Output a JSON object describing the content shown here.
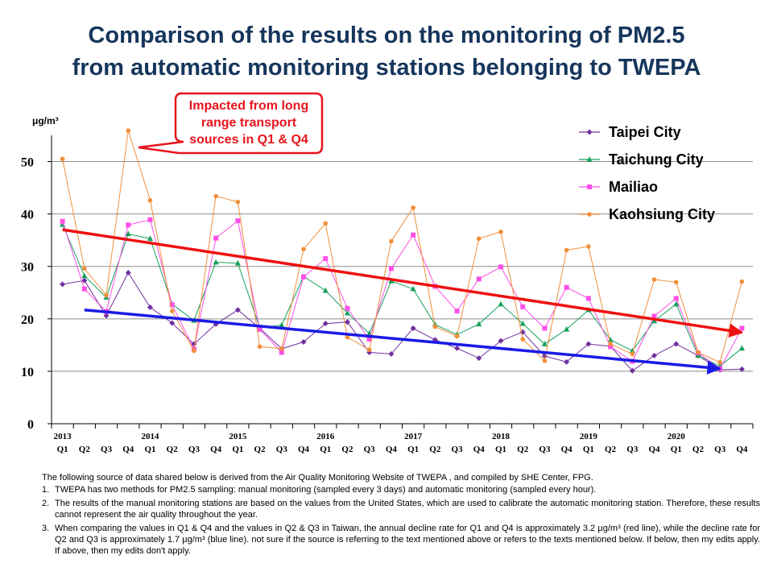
{
  "title": {
    "line1": "Comparison of the results on the monitoring of PM2.5",
    "line2": "from automatic monitoring stations belonging to TWEPA"
  },
  "callout": {
    "lines": [
      "Impacted from long",
      "range transport",
      "sources in Q1 & Q4"
    ],
    "color": "#e8141c"
  },
  "chart_data": {
    "type": "line",
    "unit": "μg/m³",
    "ylim": [
      0,
      55
    ],
    "yticks": [
      0,
      10,
      20,
      30,
      40,
      50
    ],
    "grid": true,
    "legend_position": "top-right",
    "categories": [
      {
        "q": "Q1",
        "year": "2013"
      },
      {
        "q": "Q2",
        "year": ""
      },
      {
        "q": "Q3",
        "year": ""
      },
      {
        "q": "Q4",
        "year": ""
      },
      {
        "q": "Q1",
        "year": "2014"
      },
      {
        "q": "Q2",
        "year": ""
      },
      {
        "q": "Q3",
        "year": ""
      },
      {
        "q": "Q4",
        "year": ""
      },
      {
        "q": "Q1",
        "year": "2015"
      },
      {
        "q": "Q2",
        "year": ""
      },
      {
        "q": "Q3",
        "year": ""
      },
      {
        "q": "Q4",
        "year": ""
      },
      {
        "q": "Q1",
        "year": "2016"
      },
      {
        "q": "Q2",
        "year": ""
      },
      {
        "q": "Q3",
        "year": ""
      },
      {
        "q": "Q4",
        "year": ""
      },
      {
        "q": "Q1",
        "year": "2017"
      },
      {
        "q": "Q2",
        "year": ""
      },
      {
        "q": "Q3",
        "year": ""
      },
      {
        "q": "Q4",
        "year": ""
      },
      {
        "q": "Q1",
        "year": "2018"
      },
      {
        "q": "Q2",
        "year": ""
      },
      {
        "q": "Q3",
        "year": ""
      },
      {
        "q": "Q4",
        "year": ""
      },
      {
        "q": "Q1",
        "year": "2019"
      },
      {
        "q": "Q2",
        "year": ""
      },
      {
        "q": "Q3",
        "year": ""
      },
      {
        "q": "Q4",
        "year": ""
      },
      {
        "q": "Q1",
        "year": "2020"
      },
      {
        "q": "Q2",
        "year": ""
      },
      {
        "q": "Q3",
        "year": ""
      },
      {
        "q": "Q4",
        "year": ""
      }
    ],
    "series": [
      {
        "name": "Taipei City",
        "color": "#7030a0",
        "marker": "diamond",
        "values": [
          26.6,
          27.3,
          20.6,
          28.8,
          22.2,
          19.2,
          15.2,
          19.0,
          21.7,
          18.2,
          14.3,
          15.6,
          19.1,
          19.4,
          13.6,
          13.3,
          18.2,
          16.0,
          14.4,
          12.5,
          15.8,
          17.5,
          12.9,
          11.8,
          15.2,
          14.8,
          10.1,
          13.0,
          15.2,
          13.0,
          10.3,
          10.4
        ]
      },
      {
        "name": "Taichung City",
        "color": "#15a05a",
        "marker": "triangle",
        "values": [
          38.0,
          28.2,
          24.1,
          36.2,
          35.3,
          22.8,
          19.7,
          30.8,
          30.6,
          18.3,
          18.8,
          28.1,
          25.4,
          21.1,
          17.2,
          27.2,
          25.7,
          18.9,
          17.0,
          19.0,
          22.8,
          19.1,
          15.2,
          18.0,
          21.7,
          16.0,
          13.9,
          19.6,
          22.8,
          13.0,
          11.0,
          14.4
        ]
      },
      {
        "name": "Mailiao",
        "color": "#ff4fe8",
        "marker": "square",
        "values": [
          38.6,
          25.7,
          21.4,
          37.9,
          38.9,
          22.7,
          14.2,
          35.4,
          38.7,
          18.0,
          13.6,
          28.0,
          31.5,
          22.0,
          16.1,
          29.6,
          36.0,
          26.2,
          21.5,
          27.6,
          29.9,
          22.3,
          18.2,
          26.0,
          23.9,
          14.7,
          11.9,
          20.5,
          23.9,
          13.5,
          10.5,
          18.2
        ]
      },
      {
        "name": "Kaohsiung City",
        "color": "#f28f3b",
        "marker": "circle",
        "values": [
          50.5,
          29.6,
          24.5,
          55.9,
          42.6,
          21.5,
          13.9,
          43.4,
          42.3,
          14.7,
          14.3,
          33.3,
          38.2,
          16.5,
          14.1,
          34.8,
          41.2,
          18.5,
          16.7,
          35.3,
          36.6,
          16.1,
          12.0,
          33.1,
          33.8,
          15.2,
          13.3,
          27.5,
          27.0,
          13.6,
          11.7,
          27.1
        ]
      }
    ],
    "trendlines": [
      {
        "color": "#ee1111",
        "from": {
          "index": 0,
          "value": 37.0
        },
        "to": {
          "index": 31,
          "value": 17.4
        }
      },
      {
        "color": "#1a1ae6",
        "from": {
          "index": 1,
          "value": 21.7
        },
        "to": {
          "index": 30,
          "value": 10.5
        }
      }
    ]
  },
  "notes": {
    "lead": "The following source of data shared below is derived  from the Air Quality Monitoring Website of TWEPA , and compiled by SHE Center, FPG.",
    "items": [
      {
        "num": "1.",
        "text": "TWEPA has two methods for PM2.5 sampling: manual monitoring (sampled every 3 days) and automatic monitoring (sampled every hour)."
      },
      {
        "num": "2.",
        "text": " The results of the manual monitoring stations are based on the values from the United States, which are used to calibrate the automatic monitoring station. Therefore, these results cannot represent the air quality throughout the year."
      },
      {
        "num": "3.",
        "text": "When comparing the values in Q1 & Q4 and the values in Q2 & Q3 in Taiwan, the annual decline rate for Q1 and Q4 is approximately 3.2 μg/m³ (red line), while the decline rate for Q2 and Q3 is approximately 1.7 μg/m³ (blue line). not sure if the source is referring to the text mentioned above or refers to the texts mentioned below. If below, then my edits apply. If above, then my edits don't apply."
      }
    ]
  }
}
